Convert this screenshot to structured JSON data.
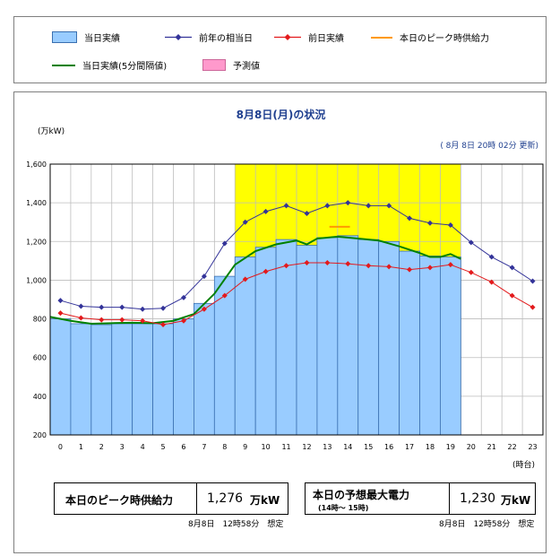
{
  "legend": {
    "actual": "当日実績",
    "last_year": "前年の相当日",
    "yesterday": "前日実績",
    "supply": "本日のピーク時供給力",
    "actual_5min": "当日実績(5分間隔値)",
    "forecast": "予測値"
  },
  "colors": {
    "bar_fill": "#99ccff",
    "last_year": "#333399",
    "yesterday": "#e31a1c",
    "supply": "#ff9900",
    "actual_5min": "#008000",
    "forecast_fill": "#ff99cc",
    "peak_zone": "#ffff00"
  },
  "header": {
    "title": "8月8日(月)の状況",
    "unit": "(万kW)",
    "updated": "( 8月 8日 20時 02分 更新)",
    "x_unit": "(時台)"
  },
  "chart_data": {
    "type": "bar",
    "title": "8月8日(月)の状況",
    "ylabel": "(万kW)",
    "xlabel": "(時台)",
    "ylim": [
      200,
      1600
    ],
    "yticks": [
      "200",
      "400",
      "600",
      "800",
      "1,000",
      "1,200",
      "1,400",
      "1,600"
    ],
    "ytick_values": [
      200,
      400,
      600,
      800,
      1000,
      1200,
      1400,
      1600
    ],
    "categories": [
      "0",
      "1",
      "2",
      "3",
      "4",
      "5",
      "6",
      "7",
      "8",
      "9",
      "10",
      "11",
      "12",
      "13",
      "14",
      "15",
      "16",
      "17",
      "18",
      "19",
      "20",
      "21",
      "22",
      "23"
    ],
    "grid": true,
    "peak_zone_hours": [
      9,
      19
    ],
    "series": [
      {
        "name": "当日実績",
        "kind": "bar",
        "values": [
          800,
          775,
          770,
          775,
          775,
          775,
          800,
          880,
          1020,
          1120,
          1170,
          1210,
          1180,
          1220,
          1230,
          1210,
          1200,
          1150,
          1125,
          1120,
          null,
          null,
          null,
          null
        ]
      },
      {
        "name": "前年の相当日",
        "kind": "line",
        "values": [
          895,
          865,
          860,
          860,
          850,
          855,
          910,
          1020,
          1190,
          1300,
          1355,
          1385,
          1345,
          1385,
          1400,
          1385,
          1385,
          1320,
          1295,
          1285,
          1195,
          1120,
          1065,
          995
        ]
      },
      {
        "name": "前日実績",
        "kind": "line",
        "values": [
          830,
          805,
          795,
          795,
          790,
          770,
          790,
          850,
          920,
          1005,
          1045,
          1075,
          1090,
          1090,
          1085,
          1075,
          1070,
          1055,
          1065,
          1080,
          1040,
          990,
          920,
          860
        ]
      },
      {
        "name": "当日実績(5分間隔値)",
        "kind": "line",
        "values": [
          810,
          790,
          775,
          778,
          780,
          778,
          790,
          825,
          930,
          1080,
          1150,
          1185,
          1205,
          1185,
          1215,
          1225,
          1215,
          1205,
          1175,
          1140,
          1120,
          1120,
          1135,
          1110
        ],
        "x": [
          0,
          1,
          2,
          3,
          4,
          5,
          6,
          7,
          8,
          9,
          10,
          11,
          12,
          12.5,
          13,
          14,
          15,
          16,
          17,
          18,
          18.5,
          19,
          19.5,
          20
        ]
      },
      {
        "name": "本日のピーク時供給力",
        "kind": "hline",
        "value": 1276,
        "x_range": [
          13.6,
          14.6
        ]
      }
    ]
  },
  "info_supply": {
    "label": "本日のピーク時供給力",
    "value": "1,276",
    "unit": "万kW",
    "note": "8月8日　12時58分　想定"
  },
  "info_peak": {
    "label": "本日の予想最大電力",
    "sub": "(14時～ 15時)",
    "value": "1,230",
    "unit": "万kW",
    "note": "8月8日　12時58分　想定"
  }
}
